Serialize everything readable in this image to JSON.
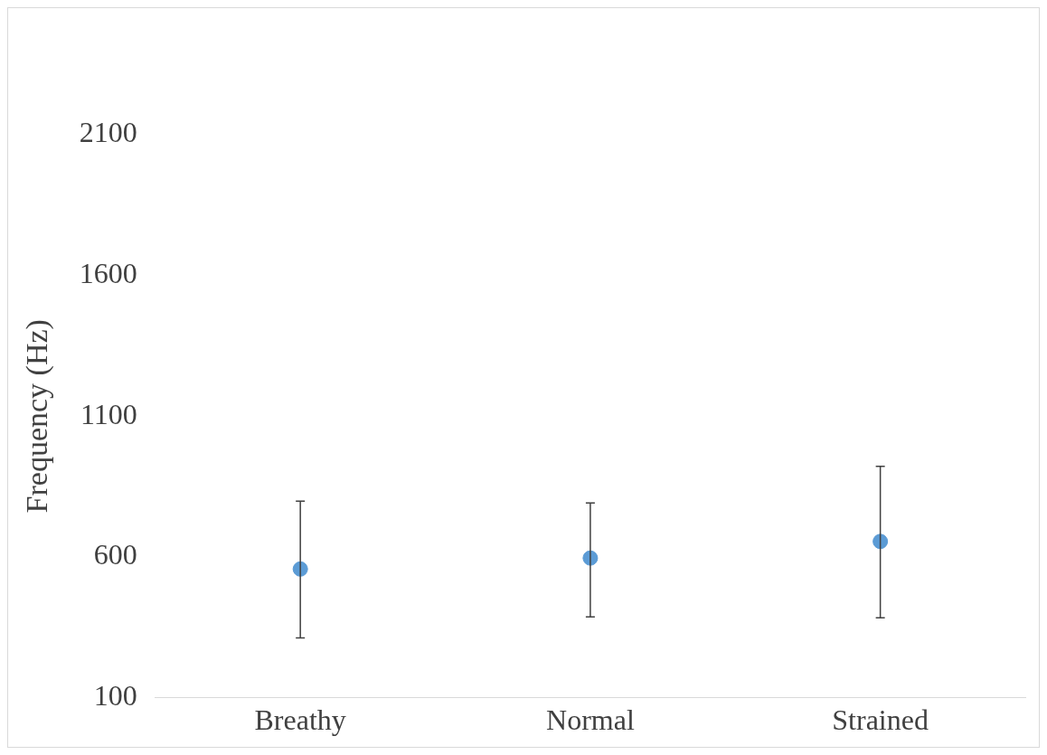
{
  "chart_data": {
    "type": "scatter",
    "ylabel": "Frequency (Hz)",
    "categories": [
      "Breathy",
      "Normal",
      "Strained"
    ],
    "values": [
      557,
      596,
      655
    ],
    "errors": [
      [
        312,
        798
      ],
      [
        387,
        792
      ],
      [
        384,
        922
      ]
    ],
    "color": "#5b9bd5",
    "marker": "circle",
    "ylim": [
      100,
      2100
    ],
    "yticks": [
      100,
      600,
      1100,
      1600,
      2100
    ]
  }
}
